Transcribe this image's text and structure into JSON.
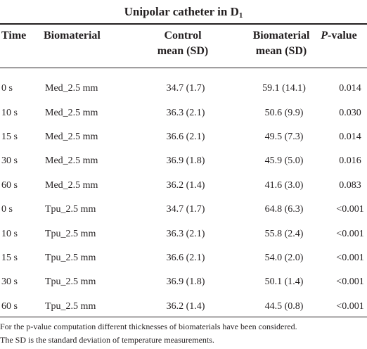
{
  "title_main": "Unipolar catheter in D",
  "title_sub": "1",
  "headers": {
    "time": "Time",
    "biomaterial": "Biomaterial",
    "control_l1": "Control",
    "control_l2": "mean (SD)",
    "biomat_l1": "Biomaterial",
    "biomat_l2": "mean (SD)",
    "p_italic": "P",
    "p_rest": "-value"
  },
  "rows": [
    {
      "time": "0 s",
      "bio": "Med_2.5 mm",
      "ctrl": "34.7 (1.7)",
      "bmean": "59.1 (14.1)",
      "p": "0.014"
    },
    {
      "time": "10 s",
      "bio": "Med_2.5 mm",
      "ctrl": "36.3 (2.1)",
      "bmean": "50.6 (9.9)",
      "p": "0.030"
    },
    {
      "time": "15 s",
      "bio": "Med_2.5 mm",
      "ctrl": "36.6 (2.1)",
      "bmean": "49.5 (7.3)",
      "p": "0.014"
    },
    {
      "time": "30 s",
      "bio": "Med_2.5 mm",
      "ctrl": "36.9 (1.8)",
      "bmean": "45.9 (5.0)",
      "p": "0.016"
    },
    {
      "time": "60 s",
      "bio": "Med_2.5 mm",
      "ctrl": "36.2 (1.4)",
      "bmean": "41.6 (3.0)",
      "p": "0.083"
    },
    {
      "time": "0 s",
      "bio": "Tpu_2.5 mm",
      "ctrl": "34.7 (1.7)",
      "bmean": "64.8 (6.3)",
      "p": "<0.001"
    },
    {
      "time": "10 s",
      "bio": "Tpu_2.5 mm",
      "ctrl": "36.3 (2.1)",
      "bmean": "55.8 (2.4)",
      "p": "<0.001"
    },
    {
      "time": "15 s",
      "bio": "Tpu_2.5 mm",
      "ctrl": "36.6 (2.1)",
      "bmean": "54.0 (2.0)",
      "p": "<0.001"
    },
    {
      "time": "30 s",
      "bio": "Tpu_2.5 mm",
      "ctrl": "36.9 (1.8)",
      "bmean": "50.1 (1.4)",
      "p": "<0.001"
    },
    {
      "time": "60 s",
      "bio": "Tpu_2.5 mm",
      "ctrl": "36.2 (1.4)",
      "bmean": "44.5 (0.8)",
      "p": "<0.001"
    }
  ],
  "footnote_1": "For the p-value computation different thicknesses of biomaterials have been considered.",
  "footnote_2": "The SD is the standard deviation of temperature measurements."
}
